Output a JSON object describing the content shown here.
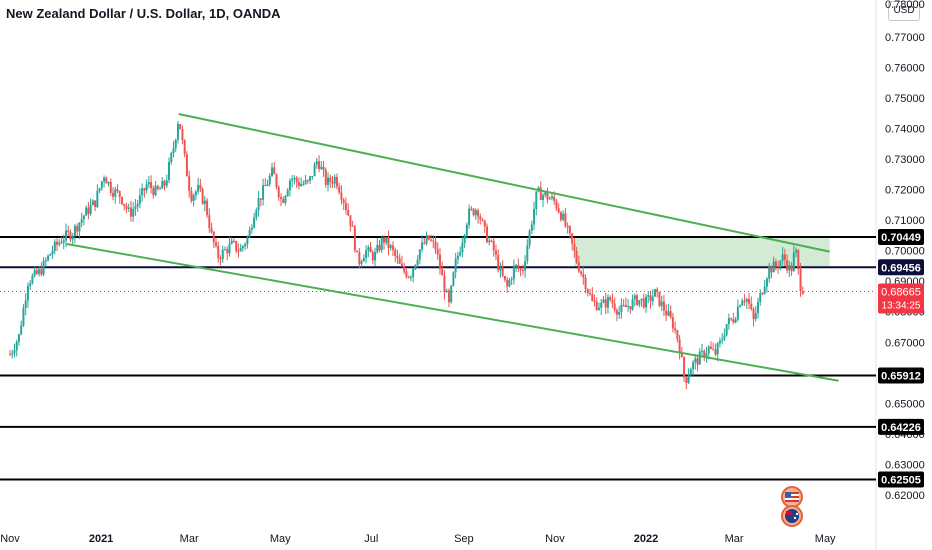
{
  "header": {
    "title": "New Zealand Dollar / U.S. Dollar, 1D, OANDA"
  },
  "axis": {
    "currency_button": "USD",
    "top_partial_label": "0.78000"
  },
  "chart_data": {
    "type": "candlestick",
    "title": "New Zealand Dollar / U.S. Dollar, 1D, OANDA",
    "ylim": [
      0.6157,
      0.7805
    ],
    "y_ticks": [
      0.77,
      0.76,
      0.75,
      0.74,
      0.73,
      0.72,
      0.71,
      0.7,
      0.69,
      0.68,
      0.67,
      0.65,
      0.64,
      0.63,
      0.62
    ],
    "x_ticks": [
      {
        "label": "Nov",
        "day": 0
      },
      {
        "label": "2021",
        "day": 61,
        "bold": true
      },
      {
        "label": "Mar",
        "day": 120
      },
      {
        "label": "May",
        "day": 181
      },
      {
        "label": "Jul",
        "day": 242
      },
      {
        "label": "Sep",
        "day": 304
      },
      {
        "label": "Nov",
        "day": 365
      },
      {
        "label": "2022",
        "day": 426,
        "bold": true
      },
      {
        "label": "Mar",
        "day": 485
      },
      {
        "label": "May",
        "day": 546
      }
    ],
    "horizontal_levels": [
      0.70449,
      0.69456,
      0.65912,
      0.64226,
      0.62505
    ],
    "level_labels": [
      "0.70449",
      "0.69456",
      "0.65912",
      "0.64226",
      "0.62505"
    ],
    "last_price": {
      "value": 0.68665,
      "label": "0.68665",
      "countdown": "13:34:25"
    },
    "shaded_zone": {
      "from_day": 378,
      "to_day": 549,
      "low": 0.69456,
      "high": 0.70449
    },
    "trendlines": [
      {
        "name": "upper",
        "p1": {
          "day": 113,
          "value": 0.7448
        },
        "p2": {
          "day": 549,
          "value": 0.6997
        }
      },
      {
        "name": "lower",
        "p1": {
          "day": 38,
          "value": 0.7022
        },
        "p2": {
          "day": 555,
          "value": 0.6574
        }
      }
    ],
    "price_path": [
      [
        0,
        0.666
      ],
      [
        6,
        0.672
      ],
      [
        12,
        0.69
      ],
      [
        20,
        0.693
      ],
      [
        28,
        0.7
      ],
      [
        35,
        0.704
      ],
      [
        42,
        0.706
      ],
      [
        50,
        0.712
      ],
      [
        57,
        0.716
      ],
      [
        63,
        0.725
      ],
      [
        68,
        0.72
      ],
      [
        74,
        0.718
      ],
      [
        80,
        0.712
      ],
      [
        86,
        0.716
      ],
      [
        92,
        0.722
      ],
      [
        98,
        0.719
      ],
      [
        104,
        0.722
      ],
      [
        110,
        0.735
      ],
      [
        113,
        0.744
      ],
      [
        117,
        0.73
      ],
      [
        121,
        0.718
      ],
      [
        126,
        0.72
      ],
      [
        131,
        0.715
      ],
      [
        135,
        0.705
      ],
      [
        139,
        0.698
      ],
      [
        144,
        0.7
      ],
      [
        149,
        0.702
      ],
      [
        154,
        0.7
      ],
      [
        160,
        0.705
      ],
      [
        164,
        0.714
      ],
      [
        170,
        0.72
      ],
      [
        176,
        0.726
      ],
      [
        182,
        0.716
      ],
      [
        188,
        0.724
      ],
      [
        194,
        0.722
      ],
      [
        200,
        0.722
      ],
      [
        206,
        0.73
      ],
      [
        212,
        0.722
      ],
      [
        218,
        0.724
      ],
      [
        224,
        0.716
      ],
      [
        229,
        0.708
      ],
      [
        233,
        0.696
      ],
      [
        238,
        0.7
      ],
      [
        244,
        0.698
      ],
      [
        250,
        0.704
      ],
      [
        256,
        0.7
      ],
      [
        262,
        0.694
      ],
      [
        268,
        0.692
      ],
      [
        274,
        0.7
      ],
      [
        280,
        0.704
      ],
      [
        285,
        0.701
      ],
      [
        290,
        0.69
      ],
      [
        294,
        0.682
      ],
      [
        298,
        0.695
      ],
      [
        302,
        0.702
      ],
      [
        307,
        0.712
      ],
      [
        313,
        0.714
      ],
      [
        318,
        0.706
      ],
      [
        324,
        0.7
      ],
      [
        329,
        0.692
      ],
      [
        333,
        0.688
      ],
      [
        338,
        0.695
      ],
      [
        343,
        0.693
      ],
      [
        348,
        0.706
      ],
      [
        353,
        0.719
      ],
      [
        359,
        0.718
      ],
      [
        365,
        0.716
      ],
      [
        370,
        0.711
      ],
      [
        375,
        0.704
      ],
      [
        380,
        0.696
      ],
      [
        385,
        0.69
      ],
      [
        390,
        0.683
      ],
      [
        396,
        0.682
      ],
      [
        402,
        0.684
      ],
      [
        408,
        0.68
      ],
      [
        414,
        0.682
      ],
      [
        420,
        0.684
      ],
      [
        426,
        0.683
      ],
      [
        432,
        0.686
      ],
      [
        438,
        0.681
      ],
      [
        444,
        0.676
      ],
      [
        448,
        0.67
      ],
      [
        452,
        0.657
      ],
      [
        456,
        0.662
      ],
      [
        460,
        0.664
      ],
      [
        464,
        0.666
      ],
      [
        468,
        0.668
      ],
      [
        472,
        0.666
      ],
      [
        476,
        0.67
      ],
      [
        480,
        0.676
      ],
      [
        485,
        0.678
      ],
      [
        490,
        0.685
      ],
      [
        494,
        0.684
      ],
      [
        498,
        0.677
      ],
      [
        503,
        0.686
      ],
      [
        508,
        0.694
      ],
      [
        513,
        0.695
      ],
      [
        518,
        0.698
      ],
      [
        523,
        0.693
      ],
      [
        526,
        0.701
      ],
      [
        529,
        0.689
      ],
      [
        532,
        0.687
      ]
    ]
  }
}
